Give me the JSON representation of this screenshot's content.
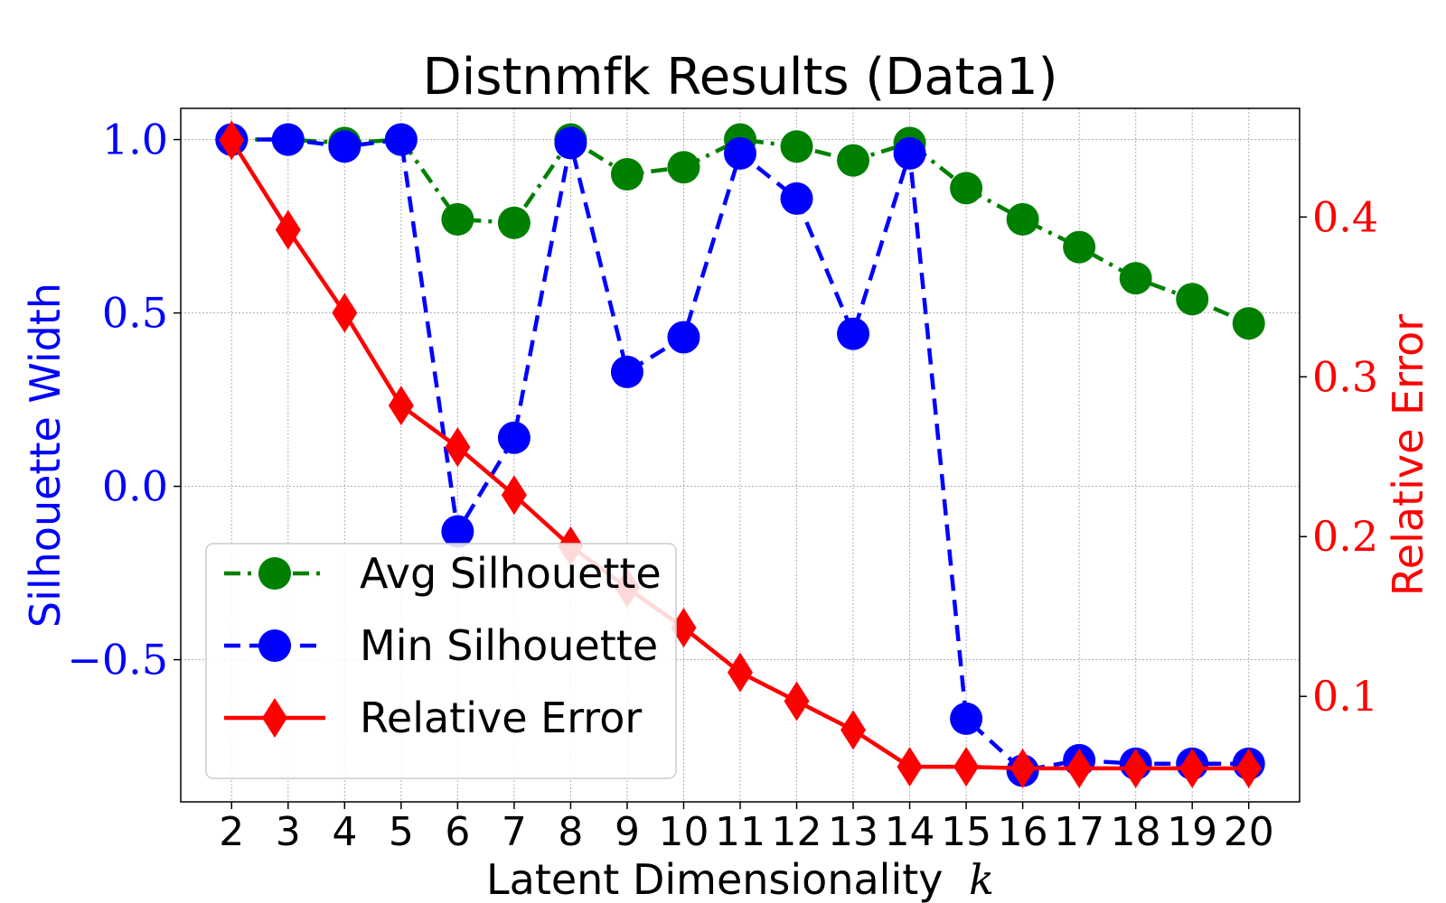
{
  "chart_data": {
    "type": "line",
    "title": "Distnmfk Results (Data1)",
    "xlabel": "Latent Dimensionality",
    "xlabel_var": "k",
    "ylabel_left": "Silhouette Width",
    "ylabel_right": "Relative Error",
    "x": [
      2,
      3,
      4,
      5,
      6,
      7,
      8,
      9,
      10,
      11,
      12,
      13,
      14,
      15,
      16,
      17,
      18,
      19,
      20
    ],
    "x_tick_labels": [
      "2",
      "3",
      "4",
      "5",
      "6",
      "7",
      "8",
      "9",
      "10",
      "11",
      "12",
      "13",
      "14",
      "15",
      "16",
      "17",
      "18",
      "19",
      "20"
    ],
    "y_left_ticks": [
      1.0,
      0.5,
      0.0,
      -0.5
    ],
    "y_left_tick_labels": [
      "1.0",
      "0.5",
      "0.0",
      "−0.5"
    ],
    "y_left_lim": [
      -0.91,
      1.09
    ],
    "y_right_ticks": [
      0.4,
      0.3,
      0.2,
      0.1
    ],
    "y_right_tick_labels": [
      "0.4",
      "0.3",
      "0.2",
      "0.1"
    ],
    "y_right_lim": [
      0.034,
      0.468
    ],
    "grid": true,
    "legend_position": "lower-left",
    "series": [
      {
        "name": "Avg Silhouette",
        "axis": "left",
        "color": "#008000",
        "linestyle": "dashdot",
        "marker": "circle",
        "values": [
          1.0,
          1.0,
          0.99,
          1.0,
          0.77,
          0.76,
          1.0,
          0.9,
          0.92,
          1.0,
          0.98,
          0.94,
          0.99,
          0.86,
          0.77,
          0.69,
          0.6,
          0.54,
          0.47
        ]
      },
      {
        "name": "Min Silhouette",
        "axis": "left",
        "color": "#0000ff",
        "linestyle": "dashed",
        "marker": "circle",
        "values": [
          1.0,
          1.0,
          0.98,
          1.0,
          -0.13,
          0.14,
          0.99,
          0.33,
          0.43,
          0.96,
          0.83,
          0.44,
          0.96,
          -0.67,
          -0.82,
          -0.79,
          -0.8,
          -0.8,
          -0.8
        ]
      },
      {
        "name": "Relative Error",
        "axis": "right",
        "color": "#ff0000",
        "linestyle": "solid",
        "marker": "diamond",
        "values": [
          0.448,
          0.392,
          0.34,
          0.282,
          0.256,
          0.226,
          0.194,
          0.168,
          0.143,
          0.115,
          0.097,
          0.079,
          0.056,
          0.056,
          0.055,
          0.055,
          0.055,
          0.055,
          0.055
        ]
      }
    ]
  }
}
